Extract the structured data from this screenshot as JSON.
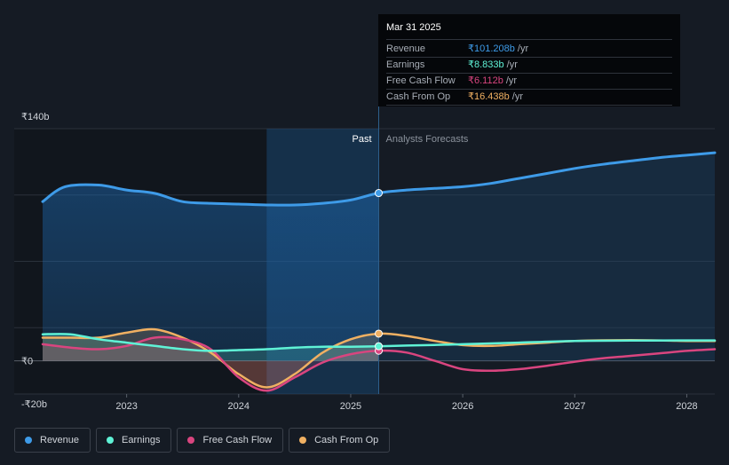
{
  "tooltip": {
    "date": "Mar 31 2025",
    "rows": [
      {
        "label": "Revenue",
        "value": "₹101.208b",
        "unit": "/yr",
        "color": "#3e9be8"
      },
      {
        "label": "Earnings",
        "value": "₹8.833b",
        "unit": "/yr",
        "color": "#5ff2d6"
      },
      {
        "label": "Free Cash Flow",
        "value": "₹6.112b",
        "unit": "/yr",
        "color": "#d9457f"
      },
      {
        "label": "Cash From Op",
        "value": "₹16.438b",
        "unit": "/yr",
        "color": "#f0b062"
      }
    ]
  },
  "regions": {
    "past": "Past",
    "forecast": "Analysts Forecasts"
  },
  "legend": [
    {
      "label": "Revenue",
      "color": "#3e9be8"
    },
    {
      "label": "Earnings",
      "color": "#5ff2d6"
    },
    {
      "label": "Free Cash Flow",
      "color": "#d9457f"
    },
    {
      "label": "Cash From Op",
      "color": "#f0b062"
    }
  ],
  "chart_data": {
    "type": "line",
    "y_axis": {
      "ticks": [
        "₹140b",
        "₹0",
        "-₹20b"
      ],
      "ylim": [
        -20,
        140
      ]
    },
    "x_axis": {
      "ticks": [
        "2023",
        "2024",
        "2025",
        "2026",
        "2027",
        "2028"
      ]
    },
    "xlim": [
      2022.25,
      2028.25
    ],
    "divider_x": 2025.25,
    "highlight_start_x": 2024.25,
    "grid": true,
    "legend_position": "bottom-left",
    "series": [
      {
        "name": "Revenue",
        "color": "#3e9be8",
        "points": [
          [
            2022.25,
            96
          ],
          [
            2022.45,
            105
          ],
          [
            2022.75,
            106
          ],
          [
            2023.0,
            103
          ],
          [
            2023.25,
            101
          ],
          [
            2023.5,
            96
          ],
          [
            2023.75,
            95
          ],
          [
            2024.0,
            94.5
          ],
          [
            2024.25,
            94
          ],
          [
            2024.5,
            94
          ],
          [
            2024.75,
            95
          ],
          [
            2025.0,
            97
          ],
          [
            2025.25,
            101.2
          ],
          [
            2025.5,
            103
          ],
          [
            2025.75,
            104
          ],
          [
            2026.0,
            105
          ],
          [
            2026.25,
            107
          ],
          [
            2026.5,
            110
          ],
          [
            2026.75,
            113
          ],
          [
            2027.0,
            116
          ],
          [
            2027.25,
            118.5
          ],
          [
            2027.5,
            120.5
          ],
          [
            2027.75,
            122.5
          ],
          [
            2028.0,
            124
          ],
          [
            2028.25,
            125.5
          ]
        ]
      },
      {
        "name": "Earnings",
        "color": "#5ff2d6",
        "points": [
          [
            2022.25,
            16
          ],
          [
            2022.5,
            16
          ],
          [
            2022.75,
            13
          ],
          [
            2023.0,
            11
          ],
          [
            2023.25,
            9
          ],
          [
            2023.5,
            7
          ],
          [
            2023.75,
            6
          ],
          [
            2024.0,
            6.5
          ],
          [
            2024.25,
            7
          ],
          [
            2024.5,
            8
          ],
          [
            2024.75,
            8.5
          ],
          [
            2025.0,
            8.5
          ],
          [
            2025.25,
            8.8
          ],
          [
            2025.5,
            9.2
          ],
          [
            2025.75,
            9.6
          ],
          [
            2026.0,
            10
          ],
          [
            2026.5,
            11
          ],
          [
            2027.0,
            12
          ],
          [
            2027.5,
            12.2
          ],
          [
            2028.0,
            12.3
          ],
          [
            2028.25,
            12.3
          ]
        ]
      },
      {
        "name": "Free Cash Flow",
        "color": "#d9457f",
        "points": [
          [
            2022.25,
            10
          ],
          [
            2022.5,
            8
          ],
          [
            2022.75,
            7
          ],
          [
            2023.0,
            9
          ],
          [
            2023.25,
            14
          ],
          [
            2023.5,
            13
          ],
          [
            2023.75,
            7
          ],
          [
            2024.0,
            -10
          ],
          [
            2024.25,
            -18
          ],
          [
            2024.5,
            -10
          ],
          [
            2024.75,
            -1
          ],
          [
            2025.0,
            4
          ],
          [
            2025.25,
            6.1
          ],
          [
            2025.5,
            5
          ],
          [
            2025.75,
            0
          ],
          [
            2026.0,
            -5
          ],
          [
            2026.25,
            -6
          ],
          [
            2026.5,
            -5
          ],
          [
            2026.75,
            -3
          ],
          [
            2027.0,
            -0.5
          ],
          [
            2027.25,
            1.5
          ],
          [
            2027.5,
            3
          ],
          [
            2027.75,
            4.5
          ],
          [
            2028.0,
            6
          ],
          [
            2028.25,
            7
          ]
        ]
      },
      {
        "name": "Cash From Op",
        "color": "#f0b062",
        "points": [
          [
            2022.25,
            14
          ],
          [
            2022.5,
            14
          ],
          [
            2022.75,
            14
          ],
          [
            2023.0,
            17
          ],
          [
            2023.25,
            19
          ],
          [
            2023.5,
            14
          ],
          [
            2023.75,
            5
          ],
          [
            2024.0,
            -8
          ],
          [
            2024.25,
            -16
          ],
          [
            2024.5,
            -8
          ],
          [
            2024.75,
            5
          ],
          [
            2025.0,
            13
          ],
          [
            2025.25,
            16.4
          ],
          [
            2025.5,
            15
          ],
          [
            2025.75,
            12
          ],
          [
            2026.0,
            9.5
          ],
          [
            2026.25,
            9
          ],
          [
            2026.5,
            10
          ],
          [
            2026.75,
            11
          ],
          [
            2027.0,
            12
          ],
          [
            2027.5,
            12.5
          ],
          [
            2028.0,
            12
          ],
          [
            2028.25,
            12
          ]
        ]
      }
    ]
  }
}
